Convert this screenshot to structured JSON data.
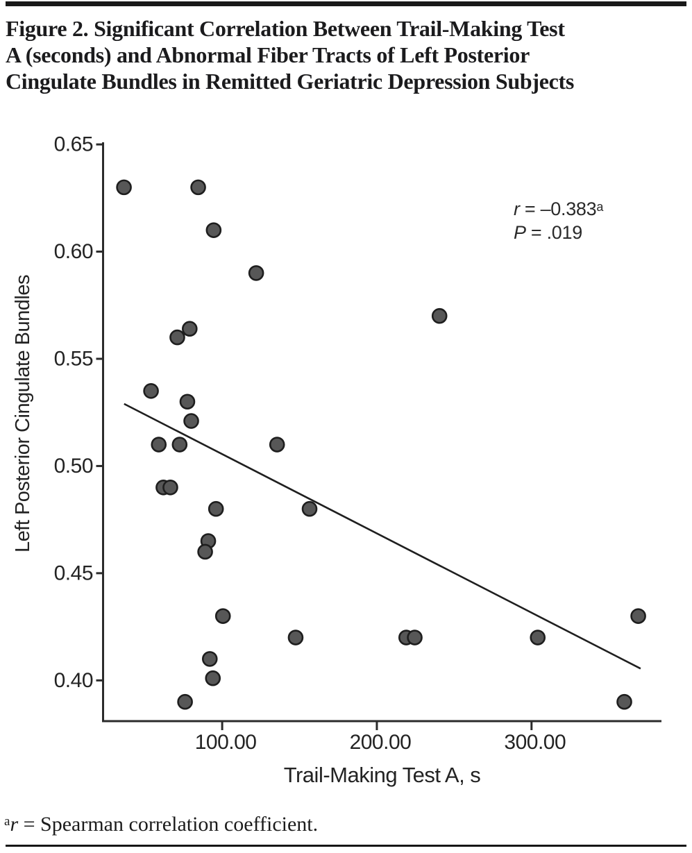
{
  "figure": {
    "title_lines": [
      "Figure 2. Significant Correlation Between Trail-Making Test",
      "A (seconds) and Abnormal Fiber Tracts of Left Posterior",
      "Cingulate Bundles in Remitted Geriatric Depression Subjects"
    ],
    "annotation": {
      "r_label": "r",
      "r_value": " = –0.383",
      "r_sup": "a",
      "p_label": "P",
      "p_value": " = .019"
    },
    "footnote": {
      "marker": "a",
      "r_label": "r",
      "text": " = Spearman correlation coefficient."
    }
  },
  "chart_data": {
    "type": "scatter",
    "title": "Figure 2. Significant Correlation Between Trail-Making Test A (seconds) and Abnormal Fiber Tracts of Left Posterior Cingulate Bundles in Remitted Geriatric Depression Subjects",
    "xlabel": "Trail-Making Test A, s",
    "ylabel": "Left Posterior Cingulate Bundles",
    "xlim": [
      23,
      384
    ],
    "ylim": [
      0.381,
      0.651
    ],
    "grid": false,
    "legend": "none",
    "x_ticks": [
      100,
      200,
      300
    ],
    "x_tick_labels": [
      "100.00",
      "200.00",
      "300.00"
    ],
    "y_ticks": [
      0.4,
      0.45,
      0.5,
      0.55,
      0.6,
      0.65
    ],
    "y_tick_labels": [
      "0.40",
      "0.45",
      "0.50",
      "0.55",
      "0.60",
      "0.65"
    ],
    "stats": {
      "r": -0.383,
      "p": 0.019
    },
    "points": [
      {
        "x": 36.5,
        "y": 0.63
      },
      {
        "x": 84.5,
        "y": 0.63
      },
      {
        "x": 94.5,
        "y": 0.61
      },
      {
        "x": 122,
        "y": 0.59
      },
      {
        "x": 240.5,
        "y": 0.57
      },
      {
        "x": 79,
        "y": 0.564
      },
      {
        "x": 71,
        "y": 0.56
      },
      {
        "x": 54,
        "y": 0.535
      },
      {
        "x": 77.5,
        "y": 0.53
      },
      {
        "x": 80,
        "y": 0.521
      },
      {
        "x": 59,
        "y": 0.51
      },
      {
        "x": 72.5,
        "y": 0.51
      },
      {
        "x": 135.5,
        "y": 0.51
      },
      {
        "x": 62,
        "y": 0.49
      },
      {
        "x": 66.5,
        "y": 0.49
      },
      {
        "x": 96,
        "y": 0.48
      },
      {
        "x": 156.5,
        "y": 0.48
      },
      {
        "x": 91,
        "y": 0.465
      },
      {
        "x": 89,
        "y": 0.46
      },
      {
        "x": 100.5,
        "y": 0.43
      },
      {
        "x": 147.5,
        "y": 0.42
      },
      {
        "x": 92,
        "y": 0.41
      },
      {
        "x": 94,
        "y": 0.401
      },
      {
        "x": 76,
        "y": 0.39
      },
      {
        "x": 219,
        "y": 0.42
      },
      {
        "x": 224.5,
        "y": 0.42
      },
      {
        "x": 304,
        "y": 0.42
      },
      {
        "x": 369,
        "y": 0.43
      },
      {
        "x": 360,
        "y": 0.39
      }
    ],
    "trend_line": {
      "x1": 36.6,
      "y1": 0.529,
      "x2": 370.5,
      "y2": 0.4055
    },
    "point_fill": "#575757",
    "point_stroke": "#1e1e1e",
    "axis_color": "#2b2b2b"
  }
}
